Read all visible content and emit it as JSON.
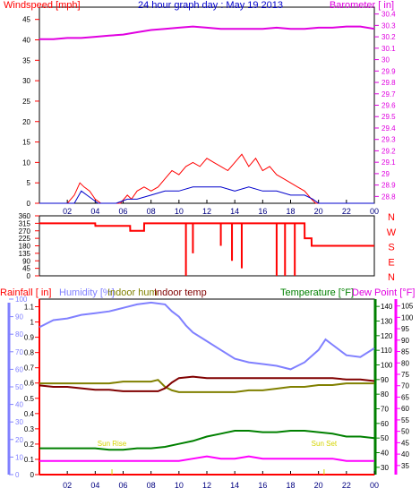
{
  "header": {
    "title": "24 hour graph day : May 19 2013",
    "windspeed_label": "Windspeed [mph]",
    "barometer_label": "Barometer [ in]"
  },
  "lower_labels": {
    "rainfall": "Rainfall [ in]",
    "humidity": "Humidity [%]",
    "indoor_hum": "Indoor hum",
    "indoor_temp": "Indoor temp",
    "temperature": "Temperature [°F]",
    "dew_point": "Dew Point [°F]",
    "sun_rise": "Sun Rise",
    "sun_set": "Sun Set"
  },
  "colors": {
    "wind": "#ff0000",
    "gust": "#0000cc",
    "barometer": "#e000e0",
    "humidity": "#8080ff",
    "indoor_hum": "#808000",
    "indoor_temp": "#800000",
    "temperature": "#008000",
    "dew_point": "#ff00ff",
    "rainfall": "#ff0000",
    "axis_blue": "#8080ff"
  },
  "chart_data": [
    {
      "type": "line",
      "title": "24 hour graph day : May 19 2013",
      "x_ticks": [
        "02",
        "04",
        "06",
        "08",
        "10",
        "12",
        "14",
        "16",
        "18",
        "20",
        "22",
        "00"
      ],
      "xlim": [
        0,
        24
      ],
      "y_left": {
        "label": "Windspeed [mph]",
        "ticks": [
          0,
          5,
          10,
          15,
          20,
          25,
          30,
          35,
          40,
          45
        ],
        "ylim": [
          0,
          48
        ]
      },
      "y_right": {
        "label": "Barometer [ in]",
        "ticks": [
          "28.8",
          "28.9",
          "29",
          "29.1",
          "29.2",
          "29.3",
          "29.4",
          "29.5",
          "29.6",
          "29.7",
          "29.8",
          "29.9",
          "30",
          "30.1",
          "30.2",
          "30.3",
          "30.4"
        ],
        "ylim": [
          28.74,
          30.46
        ]
      },
      "series": [
        {
          "name": "Barometer [ in]",
          "axis": "right",
          "x": [
            0,
            1,
            2,
            3,
            4,
            5,
            6,
            7,
            8,
            9,
            10,
            11,
            12,
            13,
            14,
            15,
            16,
            17,
            18,
            19,
            20,
            21,
            22,
            23,
            24
          ],
          "values": [
            30.18,
            30.18,
            30.19,
            30.19,
            30.2,
            30.21,
            30.22,
            30.24,
            30.26,
            30.27,
            30.28,
            30.29,
            30.28,
            30.27,
            30.27,
            30.27,
            30.27,
            30.28,
            30.27,
            30.27,
            30.28,
            30.28,
            30.29,
            30.29,
            30.27
          ]
        },
        {
          "name": "Windspeed",
          "axis": "left",
          "x": [
            0,
            2,
            2.5,
            2.9,
            3.2,
            3.6,
            4.0,
            4.4,
            5.0,
            5.8,
            6.3,
            6.6,
            7.0,
            7.5,
            8.0,
            8.5,
            9.0,
            9.5,
            10.0,
            10.5,
            11.0,
            11.5,
            12.0,
            12.5,
            13.0,
            13.5,
            14.0,
            14.5,
            15.0,
            15.5,
            16.0,
            16.5,
            17.0,
            17.5,
            18.0,
            18.5,
            19.0,
            19.5,
            19.8,
            20,
            24
          ],
          "values": [
            0,
            0,
            2,
            5,
            4,
            3,
            1,
            0,
            0,
            0,
            2,
            1,
            3,
            4,
            3,
            4,
            6,
            8,
            7,
            9,
            10,
            9,
            11,
            10,
            9,
            8,
            10,
            12,
            9,
            11,
            8,
            9,
            7,
            6,
            5,
            4,
            3,
            1,
            0,
            0,
            0
          ]
        },
        {
          "name": "Gust",
          "axis": "left",
          "x": [
            0,
            2.5,
            3.0,
            3.4,
            3.8,
            4.2,
            5.5,
            6.3,
            7.0,
            8.0,
            9.0,
            10.0,
            11.0,
            12.0,
            13.0,
            14.0,
            15.0,
            16.0,
            17.0,
            18.0,
            19.0,
            19.6,
            20,
            24
          ],
          "values": [
            0,
            0,
            3,
            2,
            1,
            0,
            0,
            1,
            1,
            2,
            3,
            3,
            4,
            4,
            4,
            3,
            4,
            3,
            3,
            2,
            2,
            1,
            0,
            0
          ]
        }
      ]
    },
    {
      "type": "line",
      "title": "",
      "x_ticks": [
        "02",
        "04",
        "06",
        "08",
        "10",
        "12",
        "14",
        "16",
        "18",
        "20",
        "22",
        "00"
      ],
      "xlim": [
        0,
        24
      ],
      "y_left": {
        "label": "",
        "ticks": [
          0,
          45,
          90,
          135,
          180,
          225,
          270,
          315,
          360
        ],
        "ylim": [
          0,
          360
        ]
      },
      "y_right": {
        "label": "",
        "ticks": [
          "N",
          "W",
          "S",
          "E",
          "N"
        ]
      },
      "series": [
        {
          "name": "Wind direction",
          "x": [
            0,
            4.0,
            4.01,
            6.5,
            6.51,
            7.5,
            7.51,
            19.0,
            19.01,
            19.5,
            19.51,
            24
          ],
          "values": [
            315,
            315,
            300,
            300,
            270,
            270,
            315,
            315,
            225,
            225,
            180,
            180
          ]
        }
      ],
      "drops_to": [
        {
          "x": 10.5,
          "value": 0
        },
        {
          "x": 11.0,
          "value": 135
        },
        {
          "x": 13.0,
          "value": 180
        },
        {
          "x": 13.8,
          "value": 90
        },
        {
          "x": 14.5,
          "value": 45
        },
        {
          "x": 17.0,
          "value": 0
        },
        {
          "x": 17.6,
          "value": 0
        },
        {
          "x": 18.3,
          "value": 0
        }
      ]
    },
    {
      "type": "line",
      "title": "",
      "x_ticks": [
        "02",
        "04",
        "06",
        "08",
        "10",
        "12",
        "14",
        "16",
        "18",
        "20",
        "22",
        "00"
      ],
      "xlim": [
        0,
        24
      ],
      "y_rainfall": {
        "label": "Rainfall [ in]",
        "ticks": [
          "0",
          "0.1",
          "0.2",
          "0.3",
          "0.4",
          "0.5",
          "0.6",
          "0.7",
          "0.8",
          "0.9",
          "1",
          "1.1"
        ],
        "ylim": [
          0,
          1.15
        ]
      },
      "y_humidity": {
        "label": "Humidity [%]",
        "ticks": [
          0,
          10,
          20,
          30,
          40,
          50,
          60,
          70,
          80,
          90,
          100
        ],
        "ylim": [
          0,
          100
        ]
      },
      "y_temperature": {
        "label": "Temperature [°F]",
        "ticks": [
          30,
          40,
          50,
          60,
          70,
          80,
          90,
          100,
          110,
          120,
          130,
          140
        ],
        "ylim": [
          25,
          145
        ]
      },
      "y_dewpoint": {
        "label": "Dew Point [°F]",
        "ticks": [
          35,
          40,
          45,
          50,
          55,
          60,
          65,
          70,
          75,
          80,
          85,
          90,
          95,
          100,
          105
        ],
        "ylim": [
          31,
          108
        ]
      },
      "series": [
        {
          "name": "Humidity [%]",
          "axis": "humidity",
          "x": [
            0,
            1,
            2,
            3,
            4,
            5,
            6,
            7,
            8,
            9,
            9.5,
            10,
            10.5,
            11,
            12,
            13,
            14,
            15,
            16,
            17,
            18,
            19,
            20,
            20.5,
            21,
            22,
            23,
            24
          ],
          "values": [
            84,
            88,
            89,
            91,
            92,
            93,
            95,
            97,
            98,
            97,
            93,
            90,
            85,
            81,
            76,
            71,
            66,
            64,
            63,
            62,
            60,
            64,
            71,
            77,
            74,
            68,
            67,
            72
          ]
        },
        {
          "name": "Indoor hum",
          "axis": "humidity",
          "x": [
            0,
            1,
            2,
            3,
            4,
            5,
            6,
            7,
            8,
            8.5,
            9,
            9.5,
            10,
            11,
            12,
            13,
            14,
            15,
            16,
            17,
            18,
            19,
            20,
            21,
            22,
            23,
            24
          ],
          "values": [
            52,
            52,
            52,
            52,
            52,
            52,
            53,
            53,
            53,
            54,
            50,
            48,
            47,
            47,
            47,
            47,
            47,
            48,
            48,
            49,
            50,
            50,
            51,
            51,
            52,
            52,
            52
          ]
        },
        {
          "name": "Indoor temp",
          "axis": "temperature",
          "x": [
            0,
            1,
            2,
            3,
            4,
            5,
            6,
            7,
            8,
            8.5,
            9,
            9.5,
            10,
            11,
            12,
            13,
            14,
            15,
            16,
            17,
            18,
            19,
            20,
            21,
            22,
            23,
            24
          ],
          "values": [
            86,
            85,
            85,
            84,
            83,
            83,
            82,
            82,
            82,
            82,
            84,
            88,
            91,
            92,
            91,
            91,
            91,
            91,
            91,
            91,
            91,
            91,
            91,
            91,
            90,
            90,
            89
          ]
        },
        {
          "name": "Temperature [°F]",
          "axis": "temperature",
          "x": [
            0,
            1,
            2,
            3,
            4,
            5,
            6,
            7,
            8,
            9,
            10,
            11,
            12,
            13,
            14,
            15,
            16,
            17,
            18,
            19,
            20,
            21,
            22,
            23,
            24
          ],
          "values": [
            43,
            43,
            43,
            43,
            43,
            42,
            42,
            43,
            43,
            44,
            46,
            48,
            51,
            53,
            55,
            55,
            54,
            54,
            55,
            55,
            54,
            53,
            51,
            51,
            50
          ]
        },
        {
          "name": "Dew Point [°F]",
          "axis": "dewpoint",
          "x": [
            0,
            2,
            4,
            6,
            8,
            10,
            11,
            12,
            13,
            14,
            15,
            16,
            17,
            18,
            19,
            20,
            21,
            22,
            23,
            24
          ],
          "values": [
            37,
            37,
            37,
            37,
            37,
            37,
            38,
            39,
            38,
            38,
            39,
            38,
            38,
            38,
            38,
            38,
            38,
            37,
            37,
            37
          ]
        },
        {
          "name": "Rainfall [ in]",
          "axis": "rainfall",
          "x": [
            0,
            24
          ],
          "values": [
            0,
            0
          ]
        }
      ],
      "annotations": [
        {
          "text": "Sun Rise",
          "x": 5.2
        },
        {
          "text": "Sun Set",
          "x": 20.4
        }
      ]
    }
  ]
}
